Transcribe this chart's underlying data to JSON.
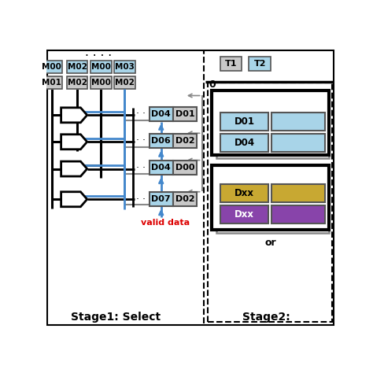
{
  "bg_color": "#ffffff",
  "title_stage1": "Stage1: Select",
  "title_stage2": "Stage2:",
  "valid_data_label": "valid data",
  "label_dots": "· · · ·",
  "label_dotdot": "· ·",
  "m_row1": [
    "M00",
    "M02",
    "M00",
    "M03"
  ],
  "m_row2": [
    "M01",
    "M02",
    "M00",
    "M02"
  ],
  "d_pairs": [
    [
      "D04",
      "D01"
    ],
    [
      "D06",
      "D02"
    ],
    [
      "D04",
      "D00"
    ],
    [
      "D07",
      "D02"
    ]
  ],
  "stage2_top_labels": [
    "T1",
    "T2"
  ],
  "stage2_blue_d": [
    "D01",
    "D04"
  ],
  "stage2_yellow": "Dxx",
  "stage2_purple": "Dxx",
  "stage2_bottom_label": "or",
  "light_blue": "#a8d4e8",
  "gray_box": "#c8c8c8",
  "dark_gray": "#555555",
  "med_gray": "#888888",
  "yellow_color": "#c8a832",
  "purple_color": "#8844aa",
  "black": "#000000",
  "red": "#dd0000",
  "blue_line": "#4488cc",
  "white": "#ffffff"
}
